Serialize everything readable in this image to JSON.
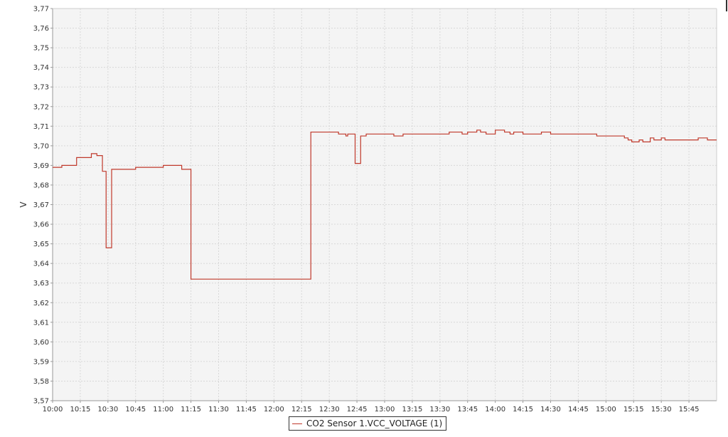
{
  "colors": {
    "series": "#c0392b",
    "plot_background": "#f4f4f4",
    "grid": "#d8d8d8",
    "axis": "#999999"
  },
  "chart_data": {
    "type": "line",
    "step": true,
    "title": "",
    "xlabel": "",
    "ylabel": "V",
    "xlim": [
      "10:00",
      "16:00"
    ],
    "ylim": [
      3.57,
      3.77
    ],
    "grid": true,
    "legend_position": "bottom-center",
    "x_ticks": [
      "10:00",
      "10:15",
      "10:30",
      "10:45",
      "11:00",
      "11:15",
      "11:30",
      "11:45",
      "12:00",
      "12:15",
      "12:30",
      "12:45",
      "13:00",
      "13:15",
      "13:30",
      "13:45",
      "14:00",
      "14:15",
      "14:30",
      "14:45",
      "15:00",
      "15:15",
      "15:30",
      "15:45"
    ],
    "y_ticks": [
      "3,57",
      "3,58",
      "3,59",
      "3,60",
      "3,61",
      "3,62",
      "3,63",
      "3,64",
      "3,65",
      "3,66",
      "3,67",
      "3,68",
      "3,69",
      "3,70",
      "3,71",
      "3,72",
      "3,73",
      "3,74",
      "3,75",
      "3,76",
      "3,77"
    ],
    "series": [
      {
        "name": "CO2 Sensor 1.VCC_VOLTAGE (1)",
        "x": [
          "10:00",
          "10:01",
          "10:05",
          "10:07",
          "10:13",
          "10:15",
          "10:18",
          "10:21",
          "10:23",
          "10:24",
          "10:26",
          "10:27",
          "10:29",
          "10:29",
          "10:30",
          "10:32",
          "10:36",
          "10:45",
          "10:50",
          "11:00",
          "11:05",
          "11:10",
          "11:12",
          "11:15",
          "12:00",
          "12:15",
          "12:20",
          "12:25",
          "12:30",
          "12:35",
          "12:39",
          "12:40",
          "12:41",
          "12:42",
          "12:43",
          "12:44",
          "12:45",
          "12:47",
          "12:49",
          "12:50",
          "12:55",
          "13:00",
          "13:05",
          "13:10",
          "13:15",
          "13:20",
          "13:25",
          "13:30",
          "13:35",
          "13:40",
          "13:42",
          "13:45",
          "13:50",
          "13:52",
          "13:55",
          "14:00",
          "14:05",
          "14:08",
          "14:10",
          "14:15",
          "14:20",
          "14:25",
          "14:30",
          "14:35",
          "14:40",
          "14:45",
          "14:50",
          "14:55",
          "15:00",
          "15:05",
          "15:10",
          "15:12",
          "15:14",
          "15:18",
          "15:20",
          "15:22",
          "15:24",
          "15:26",
          "15:28",
          "15:30",
          "15:32",
          "15:35",
          "15:40",
          "15:45",
          "15:50",
          "15:52",
          "15:55",
          "15:58",
          "16:00"
        ],
        "y": [
          3.689,
          3.689,
          3.69,
          3.69,
          3.694,
          3.694,
          3.694,
          3.696,
          3.696,
          3.695,
          3.695,
          3.687,
          3.651,
          3.648,
          3.648,
          3.688,
          3.688,
          3.689,
          3.689,
          3.69,
          3.69,
          3.688,
          3.688,
          3.632,
          3.632,
          3.632,
          3.707,
          3.707,
          3.707,
          3.706,
          3.705,
          3.706,
          3.706,
          3.706,
          3.706,
          3.691,
          3.691,
          3.705,
          3.705,
          3.706,
          3.706,
          3.706,
          3.705,
          3.706,
          3.706,
          3.706,
          3.706,
          3.706,
          3.707,
          3.707,
          3.706,
          3.707,
          3.708,
          3.707,
          3.706,
          3.708,
          3.707,
          3.706,
          3.707,
          3.706,
          3.706,
          3.707,
          3.706,
          3.706,
          3.706,
          3.706,
          3.706,
          3.705,
          3.705,
          3.705,
          3.704,
          3.703,
          3.702,
          3.703,
          3.702,
          3.702,
          3.704,
          3.703,
          3.703,
          3.704,
          3.703,
          3.703,
          3.703,
          3.703,
          3.704,
          3.704,
          3.703,
          3.703,
          3.703
        ]
      }
    ]
  },
  "legend": {
    "label": "CO2 Sensor 1.VCC_VOLTAGE (1)"
  }
}
